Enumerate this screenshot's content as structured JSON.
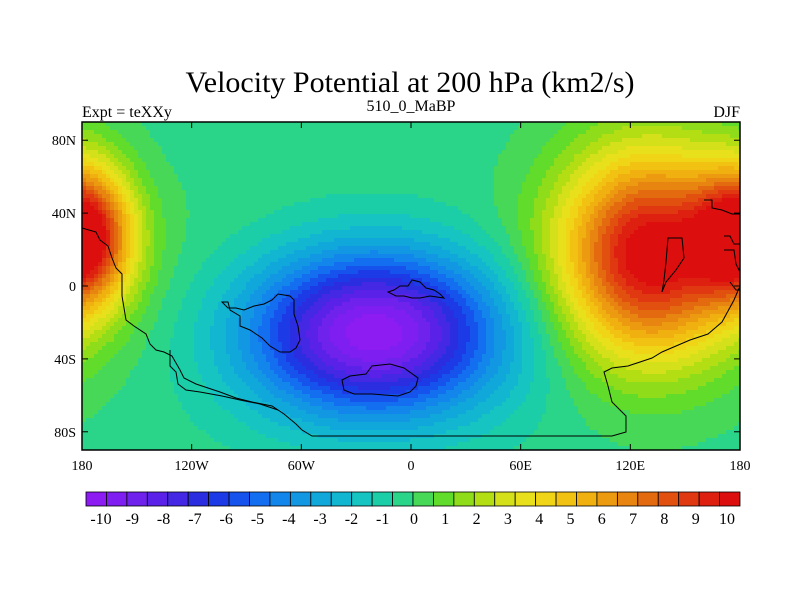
{
  "chart_data": {
    "type": "heatmap",
    "title": "Velocity Potential at 200 hPa (km2/s)",
    "left_label": "Expt = teXXy",
    "center_label": "510_0_MaBP",
    "right_label": "DJF",
    "xlim": [
      -180,
      180
    ],
    "ylim": [
      -90,
      90
    ],
    "x_ticks": [
      {
        "value": -180,
        "label": "180"
      },
      {
        "value": -120,
        "label": "120W"
      },
      {
        "value": -60,
        "label": "60W"
      },
      {
        "value": 0,
        "label": "0"
      },
      {
        "value": 60,
        "label": "60E"
      },
      {
        "value": 120,
        "label": "120E"
      },
      {
        "value": 180,
        "label": "180"
      }
    ],
    "y_ticks": [
      {
        "value": 80,
        "label": "80N"
      },
      {
        "value": 40,
        "label": "40N"
      },
      {
        "value": 0,
        "label": "0"
      },
      {
        "value": -40,
        "label": "40S"
      },
      {
        "value": -80,
        "label": "80S"
      }
    ],
    "colorbar": {
      "min": -10,
      "max": 10,
      "step": 0.5,
      "labels": [
        "-10",
        "-9",
        "-8",
        "-7",
        "-6",
        "-5",
        "-4",
        "-3",
        "-2",
        "-1",
        "0",
        "1",
        "2",
        "3",
        "4",
        "5",
        "6",
        "7",
        "8",
        "9",
        "10"
      ],
      "colors": [
        "#8c1cf2",
        "#7e1ef0",
        "#6e22ec",
        "#5a22e8",
        "#4428e4",
        "#2a2ee0",
        "#1c3ae6",
        "#1652ec",
        "#146ef0",
        "#1286ea",
        "#1298e2",
        "#10a8da",
        "#12b6d0",
        "#16c4c2",
        "#1ccea8",
        "#2ad488",
        "#48d858",
        "#62dc2a",
        "#8edc1a",
        "#b4de14",
        "#d4e01a",
        "#e8e01a",
        "#f0d416",
        "#f2c212",
        "#f0b010",
        "#ec9a10",
        "#e88410",
        "#e46a10",
        "#e25010",
        "#e03810",
        "#de2010",
        "#dc0e0e"
      ]
    },
    "field_centers": [
      {
        "lon": -20,
        "lat": -25,
        "value": -10,
        "sx": 50,
        "sy": 32
      },
      {
        "lon": 130,
        "lat": 18,
        "value": 10,
        "sx": 34,
        "sy": 40
      },
      {
        "lon": -178,
        "lat": 28,
        "value": 9,
        "sx": 18,
        "sy": 26
      }
    ]
  }
}
